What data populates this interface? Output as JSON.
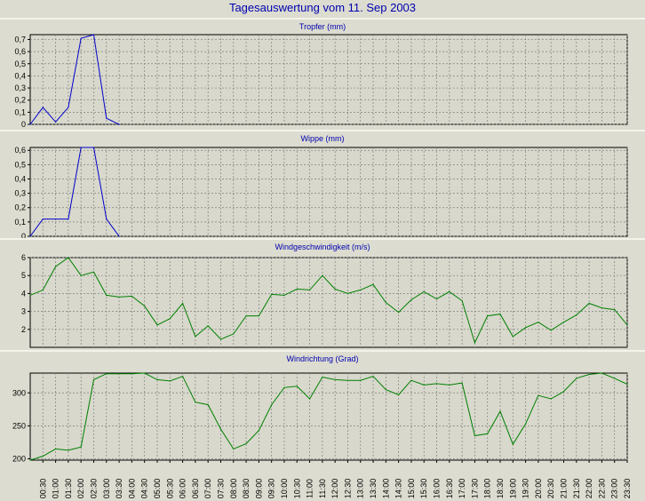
{
  "title": "Tagesauswertung vom 11. Sep 2003",
  "x_labels": [
    "00:30",
    "01:00",
    "01:30",
    "02:00",
    "02:30",
    "03:00",
    "03:30",
    "04:00",
    "04:30",
    "05:00",
    "05:30",
    "06:00",
    "06:30",
    "07:00",
    "07:30",
    "08:00",
    "08:30",
    "09:00",
    "09:30",
    "10:00",
    "10:30",
    "11:00",
    "11:30",
    "12:00",
    "12:30",
    "13:00",
    "13:30",
    "14:00",
    "14:30",
    "15:00",
    "15:30",
    "16:00",
    "16:30",
    "17:00",
    "17:30",
    "18:00",
    "18:30",
    "19:00",
    "19:30",
    "20:00",
    "20:30",
    "21:00",
    "21:30",
    "22:00",
    "22:30",
    "23:00",
    "23:30"
  ],
  "colors": {
    "background": "#dcdcd0",
    "plot_area": "#d8d8cc",
    "grid": "#808080",
    "title": "#0000b0",
    "blue_series": "#0000cc",
    "green_series": "#008000"
  },
  "chart_data": [
    {
      "type": "line",
      "title": "Tropfer (mm)",
      "xlabel": "",
      "ylabel": "",
      "ylim": [
        0,
        0.74
      ],
      "yticks": [
        0,
        0.1,
        0.2,
        0.3,
        0.4,
        0.5,
        0.6,
        0.7
      ],
      "ytick_labels": [
        "0",
        "0,1",
        "0,2",
        "0,3",
        "0,4",
        "0,5",
        "0,6",
        "0,7"
      ],
      "grid": true,
      "x": [
        "00:00",
        "00:30",
        "01:00",
        "01:30",
        "02:00",
        "02:30",
        "03:00",
        "03:30"
      ],
      "values": [
        0.0,
        0.14,
        0.02,
        0.14,
        0.71,
        0.74,
        0.05,
        0.0
      ],
      "color": "#0000cc"
    },
    {
      "type": "line",
      "title": "Wippe (mm)",
      "xlabel": "",
      "ylabel": "",
      "ylim": [
        0,
        0.62
      ],
      "yticks": [
        0,
        0.1,
        0.2,
        0.3,
        0.4,
        0.5,
        0.6
      ],
      "ytick_labels": [
        "0",
        "0,1",
        "0,2",
        "0,3",
        "0,4",
        "0,5",
        "0,6"
      ],
      "grid": true,
      "x": [
        "00:00",
        "00:30",
        "01:00",
        "01:30",
        "02:00",
        "02:30",
        "03:00",
        "03:30"
      ],
      "values": [
        0.0,
        0.12,
        0.12,
        0.12,
        0.62,
        0.62,
        0.12,
        0.0
      ],
      "color": "#0000cc"
    },
    {
      "type": "line",
      "title": "Windgeschwindigkeit (m/s)",
      "xlabel": "",
      "ylabel": "",
      "ylim": [
        1.0,
        6.0
      ],
      "yticks": [
        2,
        3,
        4,
        5,
        6
      ],
      "ytick_labels": [
        "2",
        "3",
        "4",
        "5",
        "6"
      ],
      "grid": true,
      "x": [
        "00:00",
        "00:30",
        "01:00",
        "01:30",
        "02:00",
        "02:30",
        "03:00",
        "03:30",
        "04:00",
        "04:30",
        "05:00",
        "05:30",
        "06:00",
        "06:30",
        "07:00",
        "07:30",
        "08:00",
        "08:30",
        "09:00",
        "09:30",
        "10:00",
        "10:30",
        "11:00",
        "11:30",
        "12:00",
        "12:30",
        "13:00",
        "13:30",
        "14:00",
        "14:30",
        "15:00",
        "15:30",
        "16:00",
        "16:30",
        "17:00",
        "17:30",
        "18:00",
        "18:30",
        "19:00",
        "19:30",
        "20:00",
        "20:30",
        "21:00",
        "21:30",
        "22:00",
        "22:30",
        "23:00",
        "23:30"
      ],
      "values": [
        3.9,
        4.2,
        5.5,
        6.0,
        5.0,
        5.2,
        3.9,
        3.8,
        3.85,
        3.3,
        2.25,
        2.6,
        3.45,
        1.6,
        2.2,
        1.45,
        1.75,
        2.75,
        2.75,
        3.95,
        3.9,
        4.25,
        4.2,
        5.0,
        4.25,
        4.0,
        4.2,
        4.5,
        3.5,
        2.95,
        3.65,
        4.1,
        3.7,
        4.1,
        3.6,
        1.25,
        2.75,
        2.85,
        1.6,
        2.1,
        2.4,
        1.95,
        2.4,
        2.8,
        3.45,
        3.2,
        3.1,
        2.25
      ],
      "color": "#008000"
    },
    {
      "type": "line",
      "title": "Windrichtung (Grad)",
      "xlabel": "",
      "ylabel": "",
      "ylim": [
        198,
        330
      ],
      "yticks": [
        200,
        250,
        300
      ],
      "ytick_labels": [
        "200",
        "250",
        "300"
      ],
      "grid": true,
      "x": [
        "00:00",
        "00:30",
        "01:00",
        "01:30",
        "02:00",
        "02:30",
        "03:00",
        "03:30",
        "04:00",
        "04:30",
        "05:00",
        "05:30",
        "06:00",
        "06:30",
        "07:00",
        "07:30",
        "08:00",
        "08:30",
        "09:00",
        "09:30",
        "10:00",
        "10:30",
        "11:00",
        "11:30",
        "12:00",
        "12:30",
        "13:00",
        "13:30",
        "14:00",
        "14:30",
        "15:00",
        "15:30",
        "16:00",
        "16:30",
        "17:00",
        "17:30",
        "18:00",
        "18:30",
        "19:00",
        "19:30",
        "20:00",
        "20:30",
        "21:00",
        "21:30",
        "22:00",
        "22:30",
        "23:00",
        "23:30"
      ],
      "values": [
        198,
        204,
        215,
        213,
        218,
        320,
        329,
        329,
        329,
        330,
        320,
        318,
        325,
        286,
        282,
        245,
        215,
        223,
        243,
        282,
        308,
        310,
        291,
        324,
        320,
        319,
        319,
        325,
        305,
        297,
        319,
        312,
        314,
        312,
        315,
        235,
        238,
        272,
        222,
        253,
        296,
        291,
        302,
        322,
        328,
        330,
        322,
        313
      ],
      "color": "#008000"
    }
  ]
}
